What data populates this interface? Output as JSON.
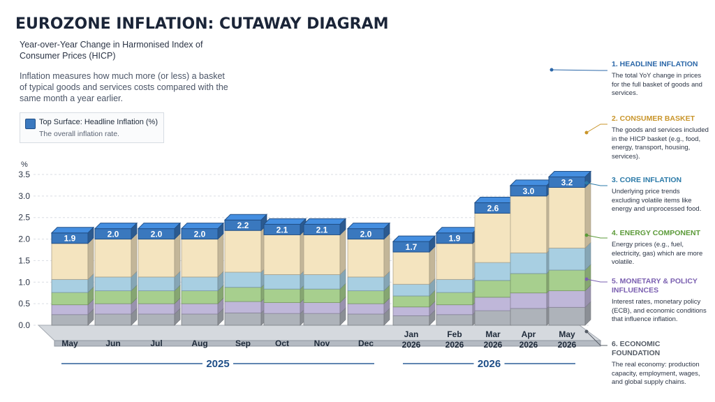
{
  "title": "EUROZONE INFLATION: CUTAWAY DIAGRAM",
  "subtitle": "Year-over-Year Change in Harmonised Index of Consumer Prices (HICP)",
  "intro": "Inflation measures how much more (or less) a basket of typical goods and services costs compared with the same month a year earlier.",
  "legend": {
    "title": "Top Surface: Headline Inflation (%)",
    "desc": "The overall inflation rate."
  },
  "colors": {
    "headline": "#3a78be",
    "basket": "#f4e4bf",
    "core": "#a8cfe2",
    "energy": "#a7cf8e",
    "policy": "#bfb7d9",
    "foundation": "#aeb3ba"
  },
  "annotations": [
    {
      "heading": "1. HEADLINE INFLATION",
      "body": "The total YoY change in prices for the full basket of goods and services.",
      "color": "#2b67a8"
    },
    {
      "heading": "2. CONSUMER BASKET",
      "body": "The goods and services included in the HICP basket (e.g., food, energy, transport, housing, services).",
      "color": "#c9952a"
    },
    {
      "heading": "3. CORE INFLATION",
      "body": "Underlying price trends excluding volatile items like energy and unprocessed food.",
      "color": "#2b7aa8"
    },
    {
      "heading": "4. ENERGY COMPONENT",
      "body": "Energy prices (e.g., fuel, electricity, gas) which are more volatile.",
      "color": "#5b9a38"
    },
    {
      "heading": "5. MONETARY & POLICY INFLUENCES",
      "body": "Interest rates, monetary policy (ECB), and economic conditions that influence inflation.",
      "color": "#7a5fb0"
    },
    {
      "heading": "6. ECONOMIC FOUNDATION",
      "body": "The real economy: production capacity, employment, wages, and global supply chains.",
      "color": "#555c66"
    }
  ],
  "chart_data": {
    "type": "bar",
    "ylabel": "%",
    "ylim": [
      0,
      3.5
    ],
    "yticks": [
      "0.0",
      "0.5",
      "1.0",
      "1.5",
      "2.0",
      "2.5",
      "3.0",
      "3.5"
    ],
    "categories": [
      "May",
      "Jun",
      "Jul",
      "Aug",
      "Sep",
      "Oct",
      "Nov",
      "Dec",
      "Jan 2026",
      "Feb 2026",
      "Mar 2026",
      "Apr 2026",
      "May 2026"
    ],
    "values": [
      1.9,
      2.0,
      2.0,
      2.0,
      2.2,
      2.1,
      2.1,
      2.0,
      1.7,
      1.9,
      2.6,
      3.0,
      3.2
    ],
    "value_labels": [
      "1.9",
      "2.0",
      "2.0",
      "2.0",
      "2.2",
      "2.1",
      "2.1",
      "2.0",
      "1.7",
      "1.9",
      "2.6",
      "3.0",
      "3.2"
    ],
    "year_groups": [
      {
        "label": "2025",
        "from": 0,
        "to": 7
      },
      {
        "label": "2026",
        "from": 8,
        "to": 12
      }
    ]
  }
}
